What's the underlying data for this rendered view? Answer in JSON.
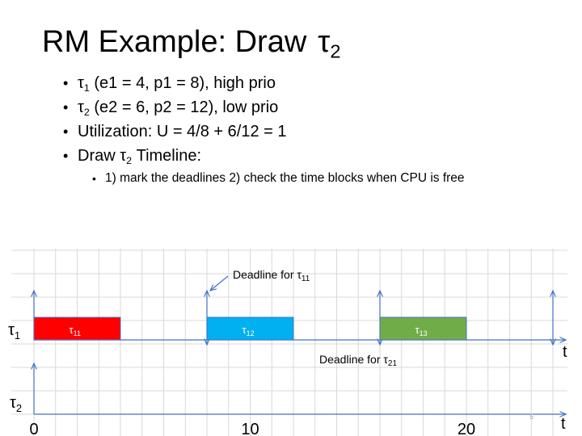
{
  "title": {
    "text": "RM Example: Draw",
    "tau": "τ",
    "sub": "2"
  },
  "bullets": {
    "b1": {
      "tau": "τ",
      "sub": "1",
      "rest": " (e1 = 4, p1 = 8), high prio"
    },
    "b2": {
      "tau": "τ",
      "sub": "2",
      "rest": " (e2 = 6, p2 = 12), low prio"
    },
    "b3": {
      "text": "Utilization: U = 4/8 + 6/12 = 1"
    },
    "b4": {
      "pre": "Draw ",
      "tau": "τ",
      "sub": "2",
      "rest": "  Timeline:"
    },
    "b5": {
      "text": "1) mark the deadlines 2) check the time blocks when CPU is free"
    }
  },
  "timeline": {
    "row1_label": {
      "tau": "τ",
      "sub": "1"
    },
    "row2_label": {
      "tau": "τ",
      "sub": "2"
    },
    "blocks": [
      {
        "label": "τ",
        "sub": "11",
        "start": 0,
        "end": 4,
        "color": "#ff0000"
      },
      {
        "label": "τ",
        "sub": "12",
        "start": 8,
        "end": 12,
        "color": "#00b0f0"
      },
      {
        "label": "τ",
        "sub": "13",
        "start": 16,
        "end": 20,
        "color": "#70ad47"
      }
    ],
    "deadline_tau1": {
      "text": "Deadline for ",
      "tau": "τ",
      "sub": "11"
    },
    "deadline_tau2": {
      "text": "Deadline for ",
      "tau": "τ",
      "sub": "21"
    },
    "ticks": [
      "0",
      "10",
      "20"
    ],
    "axis_label": "t",
    "page_number": "5",
    "arrow_color": "#4472c4",
    "grid_color": "#d9d9d9"
  }
}
